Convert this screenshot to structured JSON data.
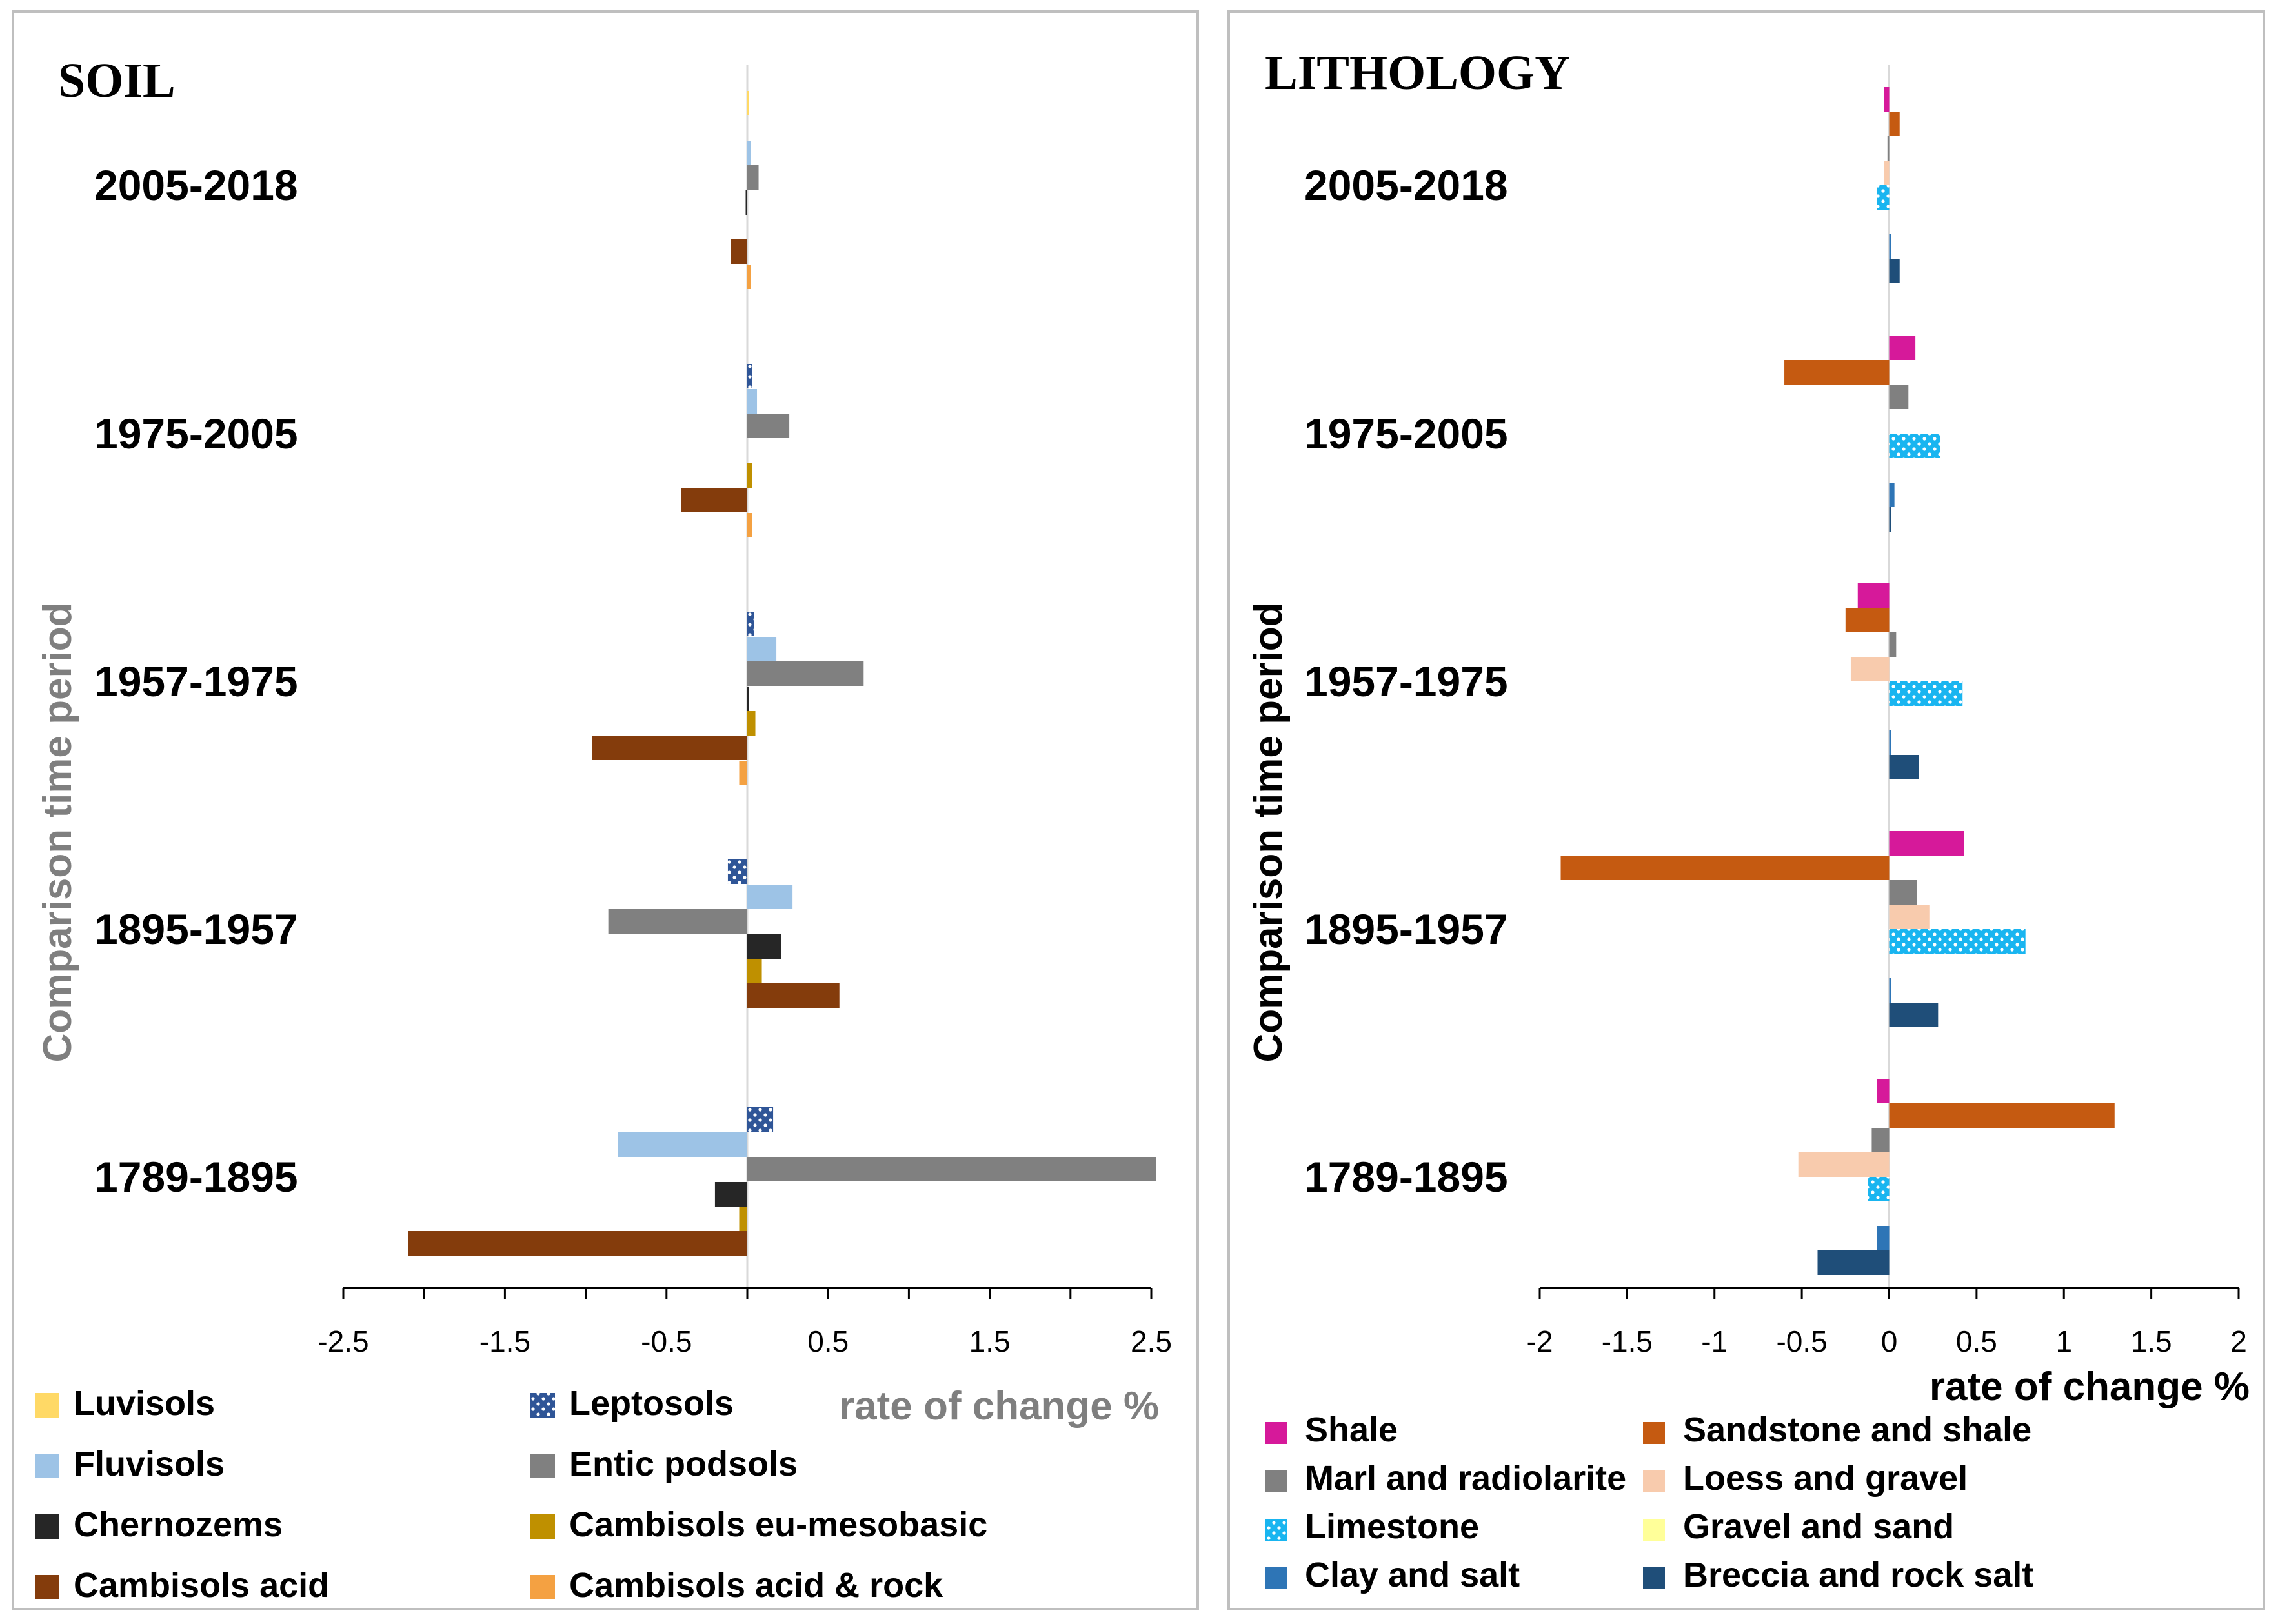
{
  "charts": [
    {
      "type": "bar",
      "orientation": "horizontal",
      "title": "SOIL",
      "ylabel": "Comparison time period",
      "xlabel": "rate of change %",
      "categories": [
        "2005-2018",
        "1975-2005",
        "1957-1975",
        "1895-1957",
        "1789-1895"
      ],
      "xlim": [
        -2.5,
        2.5
      ],
      "xticks": [
        -2.5,
        -1.5,
        -0.5,
        0.5,
        1.5,
        2.5
      ],
      "series": [
        {
          "name": "Luvisols",
          "color": "#ffd966",
          "pattern": "solid",
          "values": [
            0.01,
            0.0,
            0.0,
            0.0,
            0.0
          ]
        },
        {
          "name": "Leptosols",
          "color": "#2f5597",
          "pattern": "dots",
          "values": [
            0.0,
            0.03,
            0.04,
            -0.12,
            0.16
          ]
        },
        {
          "name": "Fluvisols",
          "color": "#9dc3e6",
          "pattern": "solid",
          "values": [
            0.02,
            0.06,
            0.18,
            0.28,
            -0.8
          ]
        },
        {
          "name": "Entic podsols",
          "color": "#808080",
          "pattern": "solid",
          "values": [
            0.07,
            0.26,
            0.72,
            -0.86,
            2.53
          ]
        },
        {
          "name": "Chernozems",
          "color": "#262626",
          "pattern": "solid",
          "values": [
            -0.01,
            0.0,
            0.01,
            0.21,
            -0.2
          ]
        },
        {
          "name": "Cambisols eu-mesobasic",
          "color": "#bf9000",
          "pattern": "solid",
          "values": [
            0.0,
            0.03,
            0.05,
            0.09,
            -0.05
          ]
        },
        {
          "name": "Cambisols acid",
          "color": "#843c0c",
          "pattern": "solid",
          "values": [
            -0.1,
            -0.41,
            -0.96,
            0.57,
            -2.1
          ]
        },
        {
          "name": "Cambisols acid & rock",
          "color": "#f4a142",
          "pattern": "solid",
          "values": [
            0.02,
            0.03,
            -0.05,
            0.0,
            0.0
          ]
        }
      ]
    },
    {
      "type": "bar",
      "orientation": "horizontal",
      "title": "LITHOLOGY",
      "ylabel": "Comparison time period",
      "xlabel": "rate of change %",
      "categories": [
        "2005-2018",
        "1975-2005",
        "1957-1975",
        "1895-1957",
        "1789-1895"
      ],
      "xlim": [
        -2,
        2
      ],
      "xticks": [
        -2,
        -1.5,
        -1,
        -0.5,
        0,
        0.5,
        1,
        1.5,
        2
      ],
      "series": [
        {
          "name": "Shale",
          "color": "#d6199a",
          "pattern": "solid",
          "values": [
            -0.03,
            0.15,
            -0.18,
            0.43,
            -0.07
          ]
        },
        {
          "name": "Sandstone and shale",
          "color": "#c55a11",
          "pattern": "solid",
          "values": [
            0.06,
            -0.6,
            -0.25,
            -1.88,
            1.29
          ]
        },
        {
          "name": "Marl and radiolarite",
          "color": "#808080",
          "pattern": "solid",
          "values": [
            -0.01,
            0.11,
            0.04,
            0.16,
            -0.1
          ]
        },
        {
          "name": "Loess and gravel",
          "color": "#f8cbad",
          "pattern": "solid",
          "values": [
            -0.03,
            0.0,
            -0.22,
            0.23,
            -0.52
          ]
        },
        {
          "name": "Limestone",
          "color": "#19b5f0",
          "pattern": "dots",
          "values": [
            -0.07,
            0.29,
            0.42,
            0.78,
            -0.12
          ]
        },
        {
          "name": "Gravel and sand",
          "color": "#ffff99",
          "pattern": "solid",
          "values": [
            0.0,
            0.0,
            0.0,
            0.0,
            0.0
          ]
        },
        {
          "name": "Clay and salt",
          "color": "#2e75b6",
          "pattern": "solid",
          "values": [
            0.01,
            0.03,
            0.01,
            0.01,
            -0.07
          ]
        },
        {
          "name": "Breccia and rock salt",
          "color": "#1f4e79",
          "pattern": "solid",
          "values": [
            0.06,
            0.01,
            0.17,
            0.28,
            -0.41
          ]
        }
      ]
    }
  ]
}
